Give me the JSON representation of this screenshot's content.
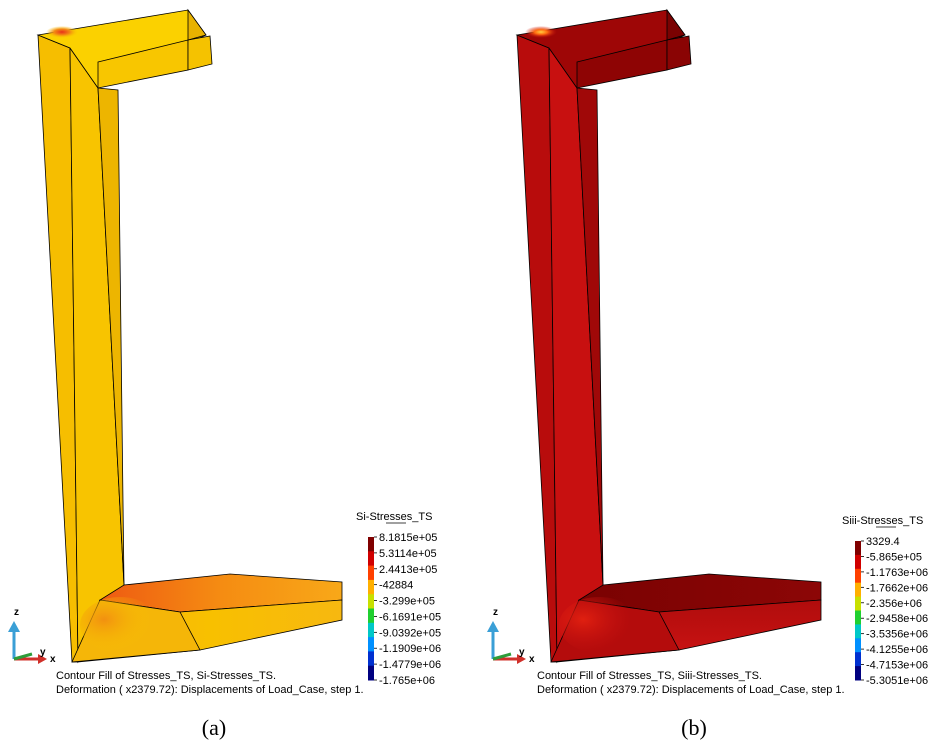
{
  "panels": [
    {
      "legend": {
        "title": "Si-Stresses_TS",
        "ticks": [
          "8.1815e+05",
          "5.3114e+05",
          "2.4413e+05",
          "-42884",
          "-3.299e+05",
          "-6.1691e+05",
          "-9.0392e+05",
          "-1.1909e+06",
          "-1.4779e+06",
          "-1.765e+06"
        ]
      },
      "caption": {
        "line1": "Contour Fill of Stresses_TS, Si-Stresses_TS.",
        "line2": "Deformation ( x2379.72): Displacements of Load_Case, step 1."
      },
      "axes": {
        "z": "z",
        "y": "y",
        "x": "x"
      },
      "sublabel": "(a)",
      "colors": {
        "main": "#f8c400",
        "front": "#f5c000",
        "side": "#e7b300",
        "top": "#fbd300",
        "base_top": "#f07a14",
        "hotspot": "#e8381c"
      }
    },
    {
      "legend": {
        "title": "Siii-Stresses_TS",
        "ticks": [
          "3329.4",
          "-5.865e+05",
          "-1.1763e+06",
          "-1.7662e+06",
          "-2.356e+06",
          "-2.9458e+06",
          "-3.5356e+06",
          "-4.1255e+06",
          "-4.7153e+06",
          "-5.3051e+06"
        ]
      },
      "caption": {
        "line1": "Contour Fill of Stresses_TS, Siii-Stresses_TS.",
        "line2": "Deformation ( x2379.72): Displacements of Load_Case, step 1."
      },
      "axes": {
        "z": "z",
        "y": "y",
        "x": "x"
      },
      "sublabel": "(b)",
      "colors": {
        "main": "#c81010",
        "front": "#c20e0e",
        "side": "#8c0606",
        "top": "#a60808",
        "base_top": "#8a0404",
        "hotspot": "#f0a020"
      }
    }
  ],
  "colormap": [
    "#800000",
    "#d00000",
    "#ff4000",
    "#ffb000",
    "#c8e000",
    "#20d030",
    "#00c8c8",
    "#0090ff",
    "#0030d0",
    "#000080"
  ]
}
